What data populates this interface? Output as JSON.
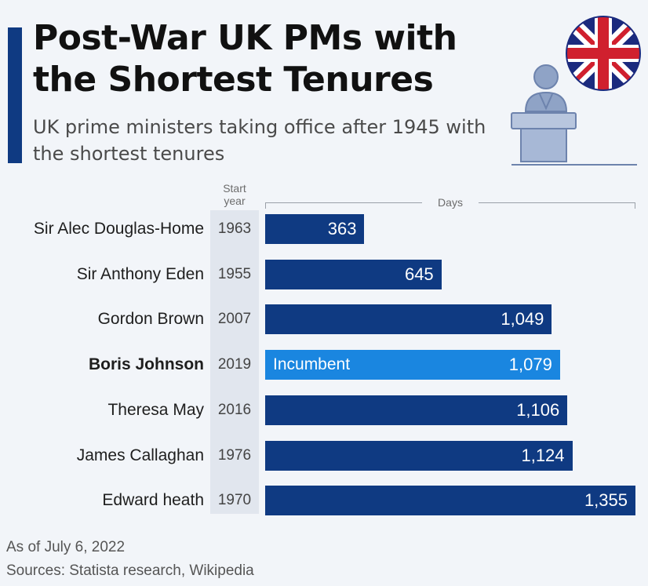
{
  "header": {
    "title": "Post-War UK PMs with the Shortest Tenures",
    "subtitle": "UK prime ministers taking office after 1945 with the shortest tenures"
  },
  "columns": {
    "year_header_line1": "Start",
    "year_header_line2": "year",
    "days_header": "Days"
  },
  "colors": {
    "accent": "#0f3a82",
    "bar": "#0f3a82",
    "bar_highlight": "#1a86e0",
    "flag_blue": "#1b2a7e",
    "flag_red": "#d0202e"
  },
  "icons": [
    "uk-flag-icon",
    "speaker-at-podium-icon"
  ],
  "chart_data": {
    "type": "bar",
    "orientation": "horizontal",
    "categories": [
      "Sir Alec Douglas-Home",
      "Sir Anthony Eden",
      "Gordon Brown",
      "Boris Johnson",
      "Theresa May",
      "James Callaghan",
      "Edward heath"
    ],
    "start_years": [
      "1963",
      "1955",
      "2007",
      "2019",
      "2016",
      "1976",
      "1970"
    ],
    "values": [
      363,
      645,
      1049,
      1079,
      1106,
      1124,
      1355
    ],
    "value_labels": [
      "363",
      "645",
      "1,049",
      "1,079",
      "1,106",
      "1,124",
      "1,355"
    ],
    "highlight_index": 3,
    "highlight_tag": "Incumbent",
    "xlim": [
      0,
      1355
    ],
    "grid": false,
    "legend": "none"
  },
  "footer": {
    "as_of": "As of July 6, 2022",
    "sources": "Sources: Statista research, Wikipedia"
  }
}
